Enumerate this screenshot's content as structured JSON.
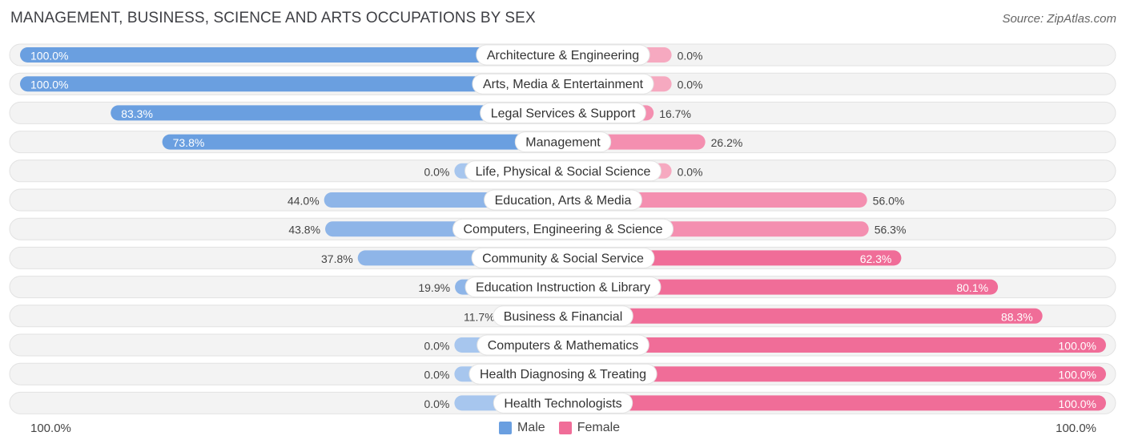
{
  "title": "MANAGEMENT, BUSINESS, SCIENCE AND ARTS OCCUPATIONS BY SEX",
  "source": "Source: ZipAtlas.com",
  "axis": {
    "left_label": "100.0%",
    "right_label": "100.0%"
  },
  "legend": {
    "male_label": "Male",
    "female_label": "Female"
  },
  "colors": {
    "male": "#6a9fe0",
    "male_light": "#a7c6ee",
    "female": "#f06d98",
    "female_light": "#f6a9c0",
    "track": "#efefef"
  },
  "chart_data": {
    "type": "bar",
    "orientation": "horizontal-diverging",
    "title": "MANAGEMENT, BUSINESS, SCIENCE AND ARTS OCCUPATIONS BY SEX",
    "categories": [
      "Architecture & Engineering",
      "Arts, Media & Entertainment",
      "Legal Services & Support",
      "Management",
      "Life, Physical & Social Science",
      "Education, Arts & Media",
      "Computers, Engineering & Science",
      "Community & Social Service",
      "Education Instruction & Library",
      "Business & Financial",
      "Computers & Mathematics",
      "Health Diagnosing & Treating",
      "Health Technologists"
    ],
    "series": [
      {
        "name": "Male",
        "values": [
          100.0,
          100.0,
          83.3,
          73.8,
          0.0,
          44.0,
          43.8,
          37.8,
          19.9,
          11.7,
          0.0,
          0.0,
          0.0
        ],
        "labels": [
          "100.0%",
          "100.0%",
          "83.3%",
          "73.8%",
          "0.0%",
          "44.0%",
          "43.8%",
          "37.8%",
          "19.9%",
          "11.7%",
          "0.0%",
          "0.0%",
          "0.0%"
        ]
      },
      {
        "name": "Female",
        "values": [
          0.0,
          0.0,
          16.7,
          26.2,
          0.0,
          56.0,
          56.3,
          62.3,
          80.1,
          88.3,
          100.0,
          100.0,
          100.0
        ],
        "labels": [
          "0.0%",
          "0.0%",
          "16.7%",
          "26.2%",
          "0.0%",
          "56.0%",
          "56.3%",
          "62.3%",
          "80.1%",
          "88.3%",
          "100.0%",
          "100.0%",
          "100.0%"
        ]
      }
    ],
    "xlim": [
      0,
      100
    ],
    "legend_position": "bottom-center"
  }
}
